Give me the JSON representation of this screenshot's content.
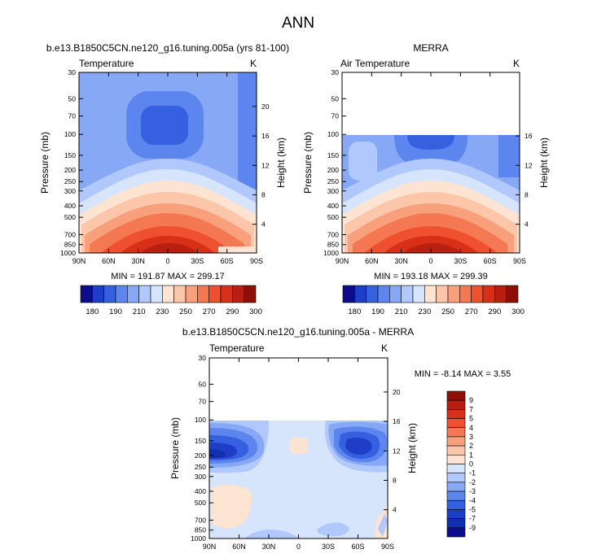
{
  "title": "ANN",
  "chart_data": [
    {
      "type": "heatmap",
      "id": "model",
      "title": "b.e13.B1850C5CN.ne120_g16.tuning.005a (yrs 81-100)",
      "left_string": "Temperature",
      "right_string": "K",
      "ylabel": "Pressure (mb)",
      "ylabel_right": "Height (km)",
      "x_ticks": [
        "90N",
        "60N",
        "30N",
        "0",
        "30S",
        "60S",
        "90S"
      ],
      "y_ticks": [
        "30",
        "50",
        "70",
        "100",
        "150",
        "200",
        "250",
        "300",
        "400",
        "500",
        "700",
        "850",
        "1000"
      ],
      "y_ticks_right": [
        "20",
        "16",
        "12",
        "8",
        "4"
      ],
      "stats": "MIN = 191.87  MAX = 299.17",
      "min": 191.87,
      "max": 299.17
    },
    {
      "type": "heatmap",
      "id": "obs",
      "title": "MERRA",
      "left_string": "Air Temperature",
      "right_string": "K",
      "ylabel": "Pressure (mb)",
      "ylabel_right": "Height (km)",
      "x_ticks": [
        "90N",
        "60N",
        "30N",
        "0",
        "30S",
        "60S",
        "90S"
      ],
      "y_ticks": [
        "30",
        "50",
        "70",
        "100",
        "150",
        "200",
        "250",
        "300",
        "400",
        "500",
        "700",
        "850",
        "1000"
      ],
      "y_ticks_right": [
        "16",
        "12",
        "8",
        "4"
      ],
      "stats": "MIN = 193.18  MAX = 299.39",
      "min": 193.18,
      "max": 299.39,
      "data_top_pressure": 100
    },
    {
      "type": "heatmap",
      "id": "diff",
      "title": "b.e13.B1850C5CN.ne120_g16.tuning.005a - MERRA",
      "left_string": "Temperature",
      "right_string": "K",
      "ylabel": "Pressure (mb)",
      "ylabel_right": "Height (km)",
      "x_ticks": [
        "90N",
        "60N",
        "30N",
        "0",
        "30S",
        "60S",
        "90S"
      ],
      "y_ticks": [
        "30",
        "50",
        "70",
        "100",
        "150",
        "200",
        "250",
        "300",
        "400",
        "500",
        "700",
        "850",
        "1000"
      ],
      "y_ticks_right": [
        "20",
        "16",
        "12",
        "8",
        "4"
      ],
      "stats": "MIN =  -8.14  MAX =   3.55",
      "min": -8.14,
      "max": 3.55,
      "data_top_pressure": 100
    }
  ],
  "colorbar_abs": {
    "labels": [
      "180",
      "190",
      "210",
      "230",
      "250",
      "270",
      "290",
      "300"
    ],
    "colors": [
      "#0d0d8c",
      "#1f3ec8",
      "#3560e0",
      "#5c86ee",
      "#86a8f5",
      "#b0c8fb",
      "#d6e4fc",
      "#fde4d2",
      "#fbc6aa",
      "#f8a07c",
      "#f47852",
      "#ee5030",
      "#d83018",
      "#b81f10",
      "#8c0f08"
    ]
  },
  "colorbar_diff": {
    "labels": [
      "9",
      "7",
      "5",
      "4",
      "3",
      "2",
      "1",
      "0",
      "-1",
      "-2",
      "-3",
      "-4",
      "-5",
      "-7",
      "-9"
    ],
    "colors": [
      "#8c0f08",
      "#b81f10",
      "#d83018",
      "#ee5030",
      "#f47852",
      "#f8a07c",
      "#fbc6aa",
      "#fde4d2",
      "#d6e4fc",
      "#b0c8fb",
      "#86a8f5",
      "#5c86ee",
      "#3560e0",
      "#1f3ec8",
      "#1030b0",
      "#0d0d8c"
    ]
  }
}
